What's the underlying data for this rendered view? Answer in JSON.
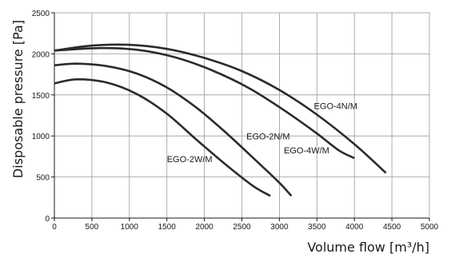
{
  "chart_data": {
    "type": "line",
    "title": "",
    "xlabel": "Volume flow [m³/h]",
    "ylabel": "Disposable pressure [Pa]",
    "xlim": [
      0,
      5000
    ],
    "ylim": [
      0,
      2500
    ],
    "x_ticks": [
      "0",
      "500",
      "1000",
      "1500",
      "2000",
      "2500",
      "3000",
      "3500",
      "4000",
      "4500",
      "5000"
    ],
    "y_ticks": [
      "0",
      "500",
      "1000",
      "1500",
      "2000",
      "2500"
    ],
    "grid": true,
    "series": [
      {
        "name": "EGO-2W/M",
        "x": [
          0,
          300,
          700,
          1100,
          1500,
          1900,
          2300,
          2650,
          2880
        ],
        "y": [
          1640,
          1690,
          1650,
          1510,
          1270,
          950,
          640,
          390,
          270
        ]
      },
      {
        "name": "EGO-2N/M",
        "x": [
          0,
          300,
          700,
          1100,
          1500,
          1900,
          2300,
          2700,
          3000,
          3160
        ],
        "y": [
          1860,
          1880,
          1850,
          1760,
          1590,
          1340,
          1030,
          690,
          430,
          270
        ]
      },
      {
        "name": "EGO-4W/M",
        "x": [
          0,
          600,
          1100,
          1600,
          2100,
          2600,
          3100,
          3500,
          3800,
          4000
        ],
        "y": [
          2040,
          2070,
          2050,
          1960,
          1800,
          1580,
          1290,
          1030,
          820,
          730
        ]
      },
      {
        "name": "EGO-4N/M",
        "x": [
          0,
          500,
          1000,
          1500,
          2000,
          2500,
          3000,
          3500,
          4000,
          4420
        ],
        "y": [
          2040,
          2100,
          2110,
          2060,
          1950,
          1790,
          1560,
          1260,
          900,
          550
        ]
      }
    ],
    "annotations": [
      {
        "text": "EGO-2W/M",
        "x": 1500,
        "y": 680
      },
      {
        "text": "EGO-2N/M",
        "x": 2560,
        "y": 960
      },
      {
        "text": "EGO-4W/M",
        "x": 3060,
        "y": 790
      },
      {
        "text": "EGO-4N/M",
        "x": 3460,
        "y": 1330
      }
    ]
  }
}
